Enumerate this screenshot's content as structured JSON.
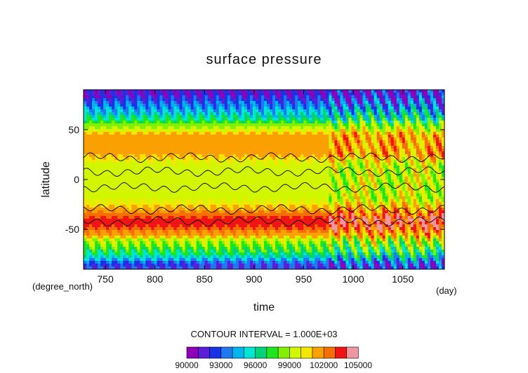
{
  "chart_data": {
    "type": "heatmap",
    "title": "surface pressure",
    "xlabel": "time",
    "ylabel": "latitude",
    "x_units": "(day)",
    "y_units": "(degree_north)",
    "xlim": [
      728,
      1092
    ],
    "ylim": [
      -90,
      90
    ],
    "x_ticks": [
      750,
      800,
      850,
      900,
      950,
      1000,
      1050
    ],
    "y_ticks": [
      50,
      0,
      -50
    ],
    "note": "CONTOUR INTERVAL = 1.000E+03",
    "colorbar": {
      "levels": [
        90000,
        91000,
        92000,
        93000,
        94000,
        95000,
        96000,
        97000,
        98000,
        99000,
        100000,
        101000,
        102000,
        103000,
        104000,
        105000
      ],
      "tick_labels": [
        "90000",
        "93000",
        "96000",
        "99000",
        "102000",
        "105000"
      ],
      "colors": [
        "#8d00b8",
        "#5a1ed9",
        "#1a32e6",
        "#1e78f0",
        "#00b4f0",
        "#00e6d2",
        "#00d278",
        "#1ee61e",
        "#82f000",
        "#d2f500",
        "#f5e600",
        "#faa000",
        "#f56e00",
        "#f01414",
        "#f096a0"
      ]
    },
    "latitudinal_profile": [
      {
        "lat": 85,
        "level": 1
      },
      {
        "lat": 80,
        "level": 2
      },
      {
        "lat": 75,
        "level": 3
      },
      {
        "lat": 70,
        "level": 4
      },
      {
        "lat": 65,
        "level": 5
      },
      {
        "lat": 60,
        "level": 6
      },
      {
        "lat": 55,
        "level": 8
      },
      {
        "lat": 50,
        "level": 9
      },
      {
        "lat": 45,
        "level": 11
      },
      {
        "lat": 40,
        "level": 11
      },
      {
        "lat": 35,
        "level": 11
      },
      {
        "lat": 30,
        "level": 11
      },
      {
        "lat": 25,
        "level": 11
      },
      {
        "lat": 20,
        "level": 10
      },
      {
        "lat": 15,
        "level": 9
      },
      {
        "lat": 10,
        "level": 9
      },
      {
        "lat": 5,
        "level": 9
      },
      {
        "lat": 0,
        "level": 9
      },
      {
        "lat": -5,
        "level": 9
      },
      {
        "lat": -10,
        "level": 9
      },
      {
        "lat": -15,
        "level": 9
      },
      {
        "lat": -20,
        "level": 9
      },
      {
        "lat": -25,
        "level": 10
      },
      {
        "lat": -30,
        "level": 11
      },
      {
        "lat": -35,
        "level": 12
      },
      {
        "lat": -40,
        "level": 13
      },
      {
        "lat": -45,
        "level": 13
      },
      {
        "lat": -50,
        "level": 12
      },
      {
        "lat": -55,
        "level": 11
      },
      {
        "lat": -60,
        "level": 9
      },
      {
        "lat": -65,
        "level": 8
      },
      {
        "lat": -70,
        "level": 7
      },
      {
        "lat": -75,
        "level": 6
      },
      {
        "lat": -80,
        "level": 4
      },
      {
        "lat": -85,
        "level": 2
      }
    ]
  }
}
